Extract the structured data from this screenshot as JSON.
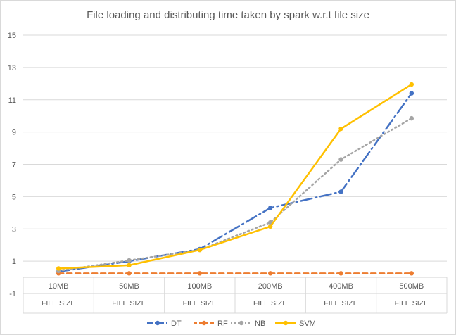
{
  "chart_data": {
    "type": "line",
    "title": "File loading  and distributing  time taken by spark w.r.t file size",
    "categories": [
      "10MB",
      "50MB",
      "100MB",
      "200MB",
      "400MB",
      "500MB"
    ],
    "category_group_label": "FILE SIZE",
    "yticks": [
      "15",
      "13",
      "11",
      "9",
      "7",
      "5",
      "3",
      "1",
      "-1"
    ],
    "ylim": [
      -1,
      15
    ],
    "grid": true,
    "legend_position": "bottom",
    "series": [
      {
        "name": "DT",
        "values": [
          0.35,
          1.0,
          1.75,
          4.3,
          5.3,
          11.4
        ],
        "color": "#4472c4",
        "dash": "16 5 2 5"
      },
      {
        "name": "RF",
        "values": [
          0.25,
          0.25,
          0.25,
          0.25,
          0.25,
          0.25
        ],
        "color": "#ed7d31",
        "dash": "7 5"
      },
      {
        "name": "NB",
        "values": [
          0.4,
          1.05,
          1.7,
          3.4,
          7.3,
          9.85
        ],
        "color": "#a5a5a5",
        "dash": "2 4"
      },
      {
        "name": "SVM",
        "values": [
          0.55,
          0.75,
          1.7,
          3.15,
          9.2,
          11.95
        ],
        "color": "#ffc000",
        "dash": ""
      }
    ]
  }
}
